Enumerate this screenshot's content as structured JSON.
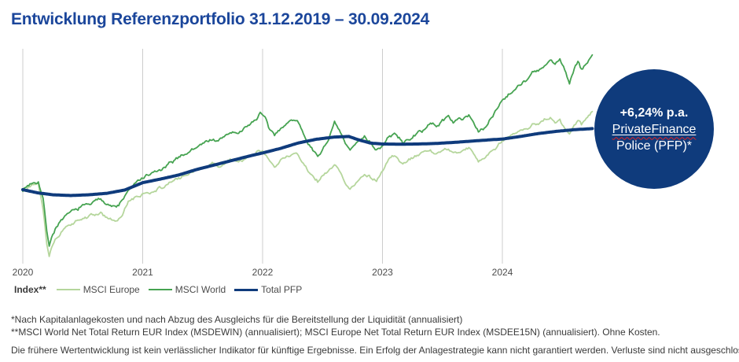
{
  "title": "Entwicklung Referenzportfolio 31.12.2019 – 30.09.2024",
  "title_color": "#1b469b",
  "badge": {
    "line1": "+6,24% p.a.",
    "line2": "PrivateFinance",
    "line3": "Police (PFP)*",
    "bg": "#0f3b7c",
    "text_color": "#ffffff",
    "spellcheck_wave_color": "#e02424"
  },
  "legend": {
    "index_label": "Index**",
    "items": [
      {
        "label": "MSCI Europe",
        "color": "#b5d69c"
      },
      {
        "label": "MSCI World",
        "color": "#46a351"
      },
      {
        "label": "Total PFP",
        "color": "#0f3b7c"
      }
    ]
  },
  "footnotes": [
    "*Nach Kapitalanlagekosten und nach Abzug des Ausgleichs für die Bereitstellung der Liquidität (annualisiert)",
    "**MSCI World Net Total Return EUR Index (MSDEWIN) (annualisiert); MSCI Europe Net Total Return EUR Index (MSDEE15N) (annualisiert). Ohne Kosten."
  ],
  "disclaimer": "Die frühere Wertentwicklung ist kein verlässlicher Indikator für künftige Ergebnisse. Ein Erfolg der Anlagestrategie kann nicht garantiert werden. Verluste sind nicht ausgeschlossen.",
  "chart_data": {
    "type": "line",
    "title": "Entwicklung Referenzportfolio 31.12.2019 – 30.09.2024",
    "x_unit": "years since 31.12.2019",
    "x_range": [
      0,
      4.75
    ],
    "x_ticks": [
      "2020",
      "2021",
      "2022",
      "2023",
      "2024"
    ],
    "baseline_value": 100,
    "value_range_shown": [
      58,
      180
    ],
    "grid": "vertical-only",
    "grid_color": "#cccccc",
    "legend_position": "bottom-left",
    "series": [
      {
        "name": "MSCI Europe",
        "color": "#b5d69c",
        "points": [
          [
            0,
            100
          ],
          [
            0.08,
            103
          ],
          [
            0.13,
            104
          ],
          [
            0.17,
            90
          ],
          [
            0.2,
            72
          ],
          [
            0.22,
            65
          ],
          [
            0.25,
            71
          ],
          [
            0.28,
            74
          ],
          [
            0.33,
            78
          ],
          [
            0.42,
            82
          ],
          [
            0.5,
            84
          ],
          [
            0.58,
            86
          ],
          [
            0.65,
            87
          ],
          [
            0.7,
            85
          ],
          [
            0.78,
            82
          ],
          [
            0.83,
            86
          ],
          [
            0.88,
            93
          ],
          [
            0.92,
            95
          ],
          [
            1.0,
            97
          ],
          [
            1.08,
            99.5
          ],
          [
            1.17,
            101.5
          ],
          [
            1.25,
            104
          ],
          [
            1.33,
            107
          ],
          [
            1.42,
            110
          ],
          [
            1.5,
            112
          ],
          [
            1.58,
            114
          ],
          [
            1.63,
            112
          ],
          [
            1.7,
            115
          ],
          [
            1.75,
            116.5
          ],
          [
            1.8,
            115
          ],
          [
            1.88,
            118
          ],
          [
            1.95,
            120
          ],
          [
            2.0,
            121
          ],
          [
            2.06,
            116
          ],
          [
            2.1,
            113.5
          ],
          [
            2.16,
            117
          ],
          [
            2.22,
            118.5
          ],
          [
            2.28,
            119.5
          ],
          [
            2.35,
            113
          ],
          [
            2.42,
            107
          ],
          [
            2.46,
            104.5
          ],
          [
            2.5,
            108
          ],
          [
            2.55,
            110
          ],
          [
            2.6,
            113
          ],
          [
            2.64,
            110
          ],
          [
            2.68,
            104
          ],
          [
            2.73,
            100.5
          ],
          [
            2.8,
            105
          ],
          [
            2.85,
            109
          ],
          [
            2.9,
            107
          ],
          [
            2.95,
            105
          ],
          [
            3.0,
            110
          ],
          [
            3.05,
            116
          ],
          [
            3.1,
            118.5
          ],
          [
            3.17,
            113.5
          ],
          [
            3.25,
            117
          ],
          [
            3.33,
            119.5
          ],
          [
            3.4,
            121
          ],
          [
            3.45,
            119
          ],
          [
            3.5,
            121.5
          ],
          [
            3.55,
            122.5
          ],
          [
            3.6,
            120
          ],
          [
            3.67,
            121.5
          ],
          [
            3.72,
            123
          ],
          [
            3.76,
            119.5
          ],
          [
            3.8,
            115
          ],
          [
            3.85,
            117
          ],
          [
            3.9,
            120
          ],
          [
            3.95,
            123
          ],
          [
            4.0,
            126
          ],
          [
            4.05,
            128
          ],
          [
            4.1,
            130
          ],
          [
            4.15,
            132
          ],
          [
            4.2,
            133
          ],
          [
            4.25,
            135.5
          ],
          [
            4.3,
            136
          ],
          [
            4.35,
            138.5
          ],
          [
            4.4,
            139
          ],
          [
            4.44,
            136.5
          ],
          [
            4.48,
            138
          ],
          [
            4.52,
            134
          ],
          [
            4.56,
            130.5
          ],
          [
            4.6,
            134.5
          ],
          [
            4.63,
            137
          ],
          [
            4.66,
            135
          ],
          [
            4.7,
            139
          ],
          [
            4.75,
            142
          ]
        ]
      },
      {
        "name": "MSCI World",
        "color": "#46a351",
        "points": [
          [
            0,
            100
          ],
          [
            0.08,
            104
          ],
          [
            0.13,
            105
          ],
          [
            0.17,
            95
          ],
          [
            0.2,
            78
          ],
          [
            0.22,
            70
          ],
          [
            0.25,
            76
          ],
          [
            0.28,
            80
          ],
          [
            0.33,
            84
          ],
          [
            0.42,
            88
          ],
          [
            0.5,
            91
          ],
          [
            0.58,
            93
          ],
          [
            0.65,
            95
          ],
          [
            0.7,
            93
          ],
          [
            0.78,
            90
          ],
          [
            0.83,
            94
          ],
          [
            0.88,
            100
          ],
          [
            0.92,
            102
          ],
          [
            1.0,
            106.5
          ],
          [
            1.08,
            109
          ],
          [
            1.17,
            111
          ],
          [
            1.25,
            115
          ],
          [
            1.33,
            119
          ],
          [
            1.42,
            122
          ],
          [
            1.5,
            125
          ],
          [
            1.58,
            128
          ],
          [
            1.63,
            126
          ],
          [
            1.7,
            130
          ],
          [
            1.75,
            132
          ],
          [
            1.8,
            130
          ],
          [
            1.88,
            135
          ],
          [
            1.95,
            139
          ],
          [
            1.98,
            142
          ],
          [
            2.02,
            139
          ],
          [
            2.06,
            132
          ],
          [
            2.1,
            129
          ],
          [
            2.16,
            135
          ],
          [
            2.22,
            137
          ],
          [
            2.28,
            139
          ],
          [
            2.35,
            130
          ],
          [
            2.42,
            121
          ],
          [
            2.46,
            117.5
          ],
          [
            2.5,
            122
          ],
          [
            2.55,
            128
          ],
          [
            2.6,
            136
          ],
          [
            2.64,
            132
          ],
          [
            2.68,
            126
          ],
          [
            2.73,
            121
          ],
          [
            2.8,
            126
          ],
          [
            2.85,
            130
          ],
          [
            2.9,
            126
          ],
          [
            2.95,
            122
          ],
          [
            3.0,
            124
          ],
          [
            3.05,
            128
          ],
          [
            3.1,
            130.5
          ],
          [
            3.17,
            125.5
          ],
          [
            3.25,
            129
          ],
          [
            3.33,
            132
          ],
          [
            3.4,
            136
          ],
          [
            3.45,
            134
          ],
          [
            3.5,
            138
          ],
          [
            3.55,
            140
          ],
          [
            3.6,
            137
          ],
          [
            3.67,
            139
          ],
          [
            3.72,
            141
          ],
          [
            3.76,
            137
          ],
          [
            3.8,
            131.5
          ],
          [
            3.85,
            133
          ],
          [
            3.9,
            138
          ],
          [
            3.95,
            144
          ],
          [
            4.0,
            149.5
          ],
          [
            4.05,
            152
          ],
          [
            4.1,
            155
          ],
          [
            4.15,
            158
          ],
          [
            4.2,
            160
          ],
          [
            4.25,
            163.5
          ],
          [
            4.3,
            164.5
          ],
          [
            4.35,
            167
          ],
          [
            4.4,
            170
          ],
          [
            4.44,
            168
          ],
          [
            4.48,
            171
          ],
          [
            4.52,
            166
          ],
          [
            4.56,
            158
          ],
          [
            4.6,
            166
          ],
          [
            4.63,
            169
          ],
          [
            4.66,
            165
          ],
          [
            4.7,
            169
          ],
          [
            4.75,
            173
          ]
        ]
      },
      {
        "name": "Total PFP",
        "color": "#0f3b7c",
        "points": [
          [
            0,
            100
          ],
          [
            0.12,
            98.3
          ],
          [
            0.25,
            97.2
          ],
          [
            0.4,
            96.8
          ],
          [
            0.55,
            97.2
          ],
          [
            0.7,
            98
          ],
          [
            0.85,
            99.8
          ],
          [
            1.0,
            103.8
          ],
          [
            1.15,
            105.8
          ],
          [
            1.3,
            108
          ],
          [
            1.45,
            111
          ],
          [
            1.6,
            113.5
          ],
          [
            1.75,
            116
          ],
          [
            1.9,
            118.5
          ],
          [
            2.0,
            120
          ],
          [
            2.15,
            122.5
          ],
          [
            2.3,
            125.5
          ],
          [
            2.45,
            127.5
          ],
          [
            2.6,
            128.7
          ],
          [
            2.72,
            129
          ],
          [
            2.8,
            127.2
          ],
          [
            2.9,
            125.4
          ],
          [
            3.0,
            124.9
          ],
          [
            3.15,
            124.8
          ],
          [
            3.3,
            124.9
          ],
          [
            3.45,
            125.2
          ],
          [
            3.6,
            125.8
          ],
          [
            3.75,
            126.5
          ],
          [
            3.9,
            127.2
          ],
          [
            4.0,
            127.6
          ],
          [
            4.15,
            129
          ],
          [
            4.3,
            130.6
          ],
          [
            4.45,
            131.8
          ],
          [
            4.6,
            132.7
          ],
          [
            4.75,
            133.3
          ]
        ]
      }
    ],
    "annotation": {
      "text": "+6,24% p.a. PrivateFinance Police (PFP)*",
      "applies_to": "Total PFP"
    }
  }
}
